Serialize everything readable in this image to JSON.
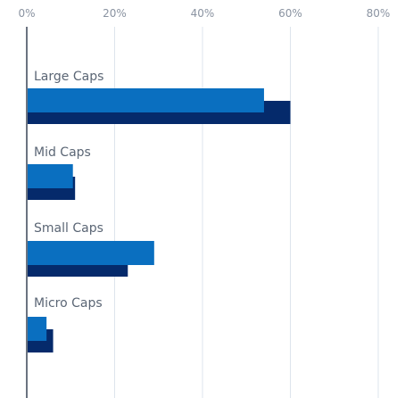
{
  "chart_data": {
    "type": "bar",
    "orientation": "horizontal",
    "categories": [
      "Large Caps",
      "Mid Caps",
      "Small Caps",
      "Micro Caps"
    ],
    "series": [
      {
        "values": [
          60,
          11,
          23,
          6
        ],
        "color": "#052a6b"
      },
      {
        "values": [
          54,
          10.5,
          29,
          4.5
        ],
        "color": "#0a6fc0"
      }
    ],
    "xticks": [
      "0%",
      "20%",
      "40%",
      "60%",
      "80%"
    ],
    "xlim": [
      0,
      80
    ],
    "grid": true,
    "legend": "none"
  }
}
